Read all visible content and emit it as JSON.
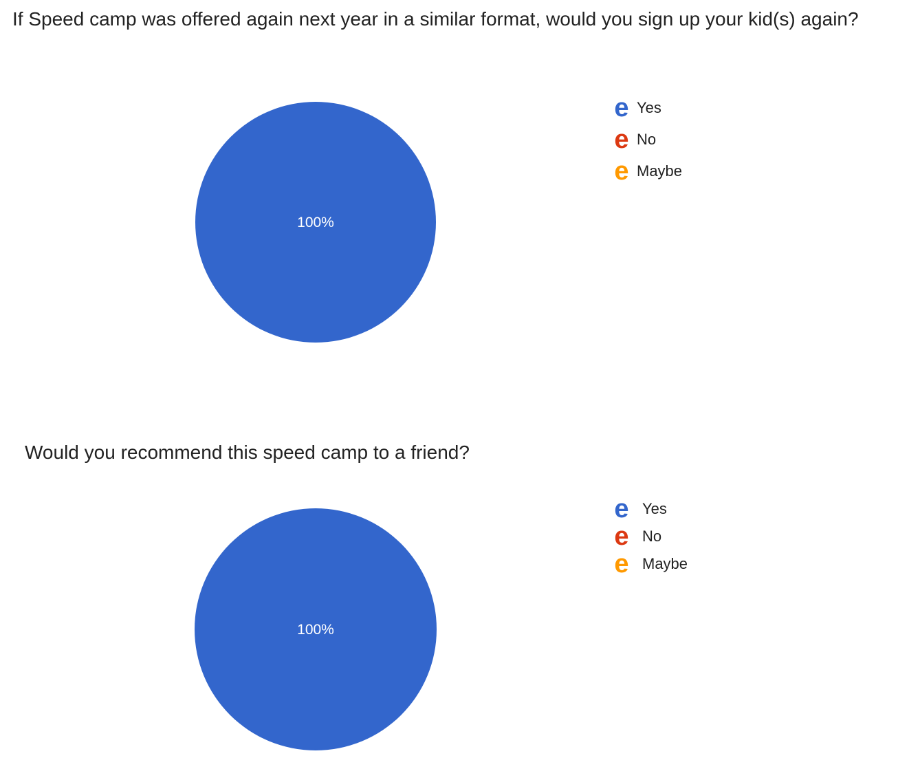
{
  "chart_data": [
    {
      "type": "pie",
      "title": "If Speed camp was offered again next year in a similar format, would you sign up your kid(s) again?",
      "categories": [
        "Yes",
        "No",
        "Maybe"
      ],
      "values": [
        100,
        0,
        0
      ],
      "value_labels": [
        "100%"
      ],
      "colors": [
        "#3366cc",
        "#dc3912",
        "#ff9900"
      ],
      "legend_position": "right",
      "legend_marker": "e"
    },
    {
      "type": "pie",
      "title": "Would you recommend this speed camp to a friend?",
      "categories": [
        "Yes",
        "No",
        "Maybe"
      ],
      "values": [
        100,
        0,
        0
      ],
      "value_labels": [
        "100%"
      ],
      "colors": [
        "#3366cc",
        "#dc3912",
        "#ff9900"
      ],
      "legend_position": "right",
      "legend_marker": "e"
    }
  ]
}
